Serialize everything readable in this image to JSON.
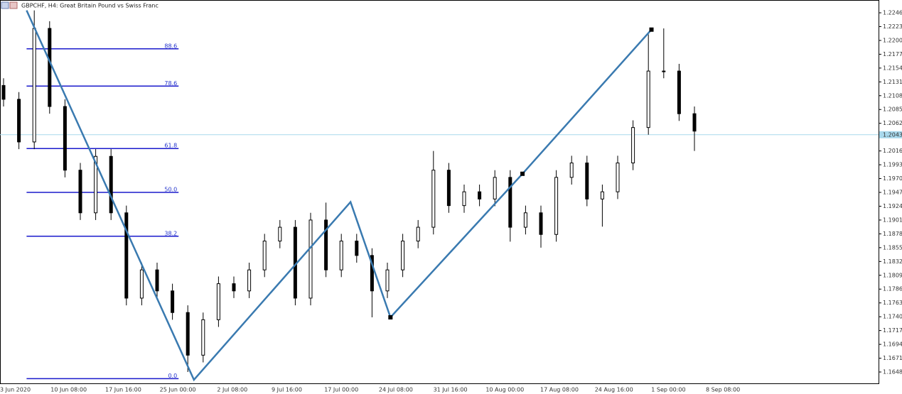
{
  "chart_data": {
    "type": "candlestick",
    "title": "GBPCHF, H4:  Great Britain Pound vs Swiss Franc",
    "x_labels": [
      "3 Jun 2020",
      "10 Jun 08:00",
      "17 Jun 16:00",
      "25 Jun 00:00",
      "2 Jul 08:00",
      "9 Jul 16:00",
      "17 Jul 00:00",
      "24 Jul 08:00",
      "31 Jul 16:00",
      "10 Aug 00:00",
      "17 Aug 08:00",
      "24 Aug 16:00",
      "1 Sep 00:00",
      "8 Sep 08:00"
    ],
    "open": [
      1.2125,
      1.2102,
      1.2031,
      1.222,
      1.209,
      1.1984,
      1.1913,
      1.2007,
      1.1913,
      1.1771,
      1.1818,
      1.1783,
      1.1747,
      1.1676,
      1.1735,
      1.1795,
      1.1783,
      1.1818,
      1.1866,
      1.1889,
      1.1771,
      1.1901,
      1.1818,
      1.1866,
      1.1842,
      1.1783,
      1.1818,
      1.1866,
      1.1889,
      1.1984,
      1.1925,
      1.1948,
      1.1936,
      1.1972,
      1.1889,
      1.1913,
      1.1877,
      1.1972,
      1.1996,
      1.1936,
      1.1948,
      1.1996,
      1.2055,
      1.2149,
      1.2149,
      1.2078
    ],
    "high": [
      1.2137,
      1.2114,
      1.225,
      1.2232,
      1.2102,
      1.1996,
      1.2019,
      1.2019,
      1.1925,
      1.183,
      1.183,
      1.1795,
      1.1759,
      1.1747,
      1.1807,
      1.1807,
      1.183,
      1.1878,
      1.1901,
      1.1901,
      1.1913,
      1.193,
      1.1878,
      1.1878,
      1.1854,
      1.183,
      1.1878,
      1.1901,
      1.2016,
      1.1996,
      1.196,
      1.196,
      1.1984,
      1.1984,
      1.1925,
      1.1925,
      1.1984,
      1.2008,
      1.2008,
      1.196,
      1.2008,
      1.2067,
      1.221,
      1.222,
      1.2161,
      1.209
    ],
    "low": [
      1.209,
      1.2019,
      1.2019,
      1.2078,
      1.1972,
      1.1901,
      1.1901,
      1.1901,
      1.1759,
      1.1759,
      1.1771,
      1.1735,
      1.1648,
      1.1664,
      1.1723,
      1.1771,
      1.1771,
      1.1806,
      1.1854,
      1.1759,
      1.1759,
      1.1806,
      1.1806,
      1.183,
      1.1739,
      1.1771,
      1.1806,
      1.1854,
      1.1877,
      1.1913,
      1.1913,
      1.1924,
      1.1924,
      1.1865,
      1.1877,
      1.1855,
      1.1865,
      1.196,
      1.1924,
      1.189,
      1.1936,
      1.1984,
      1.2043,
      1.2137,
      1.2066,
      1.2016
    ],
    "close": [
      1.2102,
      1.2031,
      1.222,
      1.209,
      1.1984,
      1.1913,
      1.2007,
      1.1913,
      1.1771,
      1.1818,
      1.1783,
      1.1747,
      1.1676,
      1.1735,
      1.1795,
      1.1783,
      1.1818,
      1.1866,
      1.1889,
      1.1771,
      1.1901,
      1.1818,
      1.1866,
      1.1842,
      1.1783,
      1.1818,
      1.1866,
      1.1889,
      1.1984,
      1.1925,
      1.1948,
      1.1936,
      1.1972,
      1.1889,
      1.1913,
      1.1877,
      1.1972,
      1.1996,
      1.1936,
      1.1948,
      1.1996,
      1.2055,
      1.2149,
      1.2149,
      1.2078,
      1.2049
    ],
    "color": "#000000",
    "zigzag": {
      "color": "#3a7ab0",
      "x": [
        1.5,
        12.4,
        22.6,
        25.2,
        33.8,
        42.2
      ],
      "y": [
        1.225,
        1.1635,
        1.1931,
        1.1739,
        1.1978,
        1.2218
      ]
    },
    "fib": {
      "color": "#1a1acc",
      "x": [
        1.5,
        11.4
      ],
      "levels": [
        {
          "label": "88.6",
          "price": 1.2186
        },
        {
          "label": "78.6",
          "price": 1.2124
        },
        {
          "label": "61.8",
          "price": 1.202
        },
        {
          "label": "50.0",
          "price": 1.1947
        },
        {
          "label": "38.2",
          "price": 1.1874
        },
        {
          "label": "0.0",
          "price": 1.1637
        }
      ]
    },
    "current_price": {
      "value": 1.2043,
      "label": "1.20430"
    },
    "ylim": [
      1.16291,
      1.22673
    ],
    "yticks": [
      {
        "value": 1.2246,
        "label": "1.22460"
      },
      {
        "value": 1.2223,
        "label": "1.22230"
      },
      {
        "value": 1.22,
        "label": "1.22000"
      },
      {
        "value": 1.2177,
        "label": "1.21770"
      },
      {
        "value": 1.2154,
        "label": "1.21540"
      },
      {
        "value": 1.2131,
        "label": "1.21310"
      },
      {
        "value": 1.2108,
        "label": "1.21080"
      },
      {
        "value": 1.2085,
        "label": "1.20850"
      },
      {
        "value": 1.2062,
        "label": "1.20620"
      },
      {
        "value": 1.2016,
        "label": "1.20160"
      },
      {
        "value": 1.1993,
        "label": "1.19930"
      },
      {
        "value": 1.197,
        "label": "1.19700"
      },
      {
        "value": 1.1947,
        "label": "1.19470"
      },
      {
        "value": 1.1924,
        "label": "1.19240"
      },
      {
        "value": 1.1901,
        "label": "1.19010"
      },
      {
        "value": 1.1878,
        "label": "1.18780"
      },
      {
        "value": 1.1855,
        "label": "1.18550"
      },
      {
        "value": 1.1832,
        "label": "1.18320"
      },
      {
        "value": 1.1809,
        "label": "1.18090"
      },
      {
        "value": 1.1786,
        "label": "1.17860"
      },
      {
        "value": 1.1763,
        "label": "1.17630"
      },
      {
        "value": 1.174,
        "label": "1.17400"
      },
      {
        "value": 1.1717,
        "label": "1.17170"
      },
      {
        "value": 1.1694,
        "label": "1.16940"
      },
      {
        "value": 1.1671,
        "label": "1.16710"
      },
      {
        "value": 1.1648,
        "label": "1.16480"
      }
    ],
    "grid": false
  }
}
